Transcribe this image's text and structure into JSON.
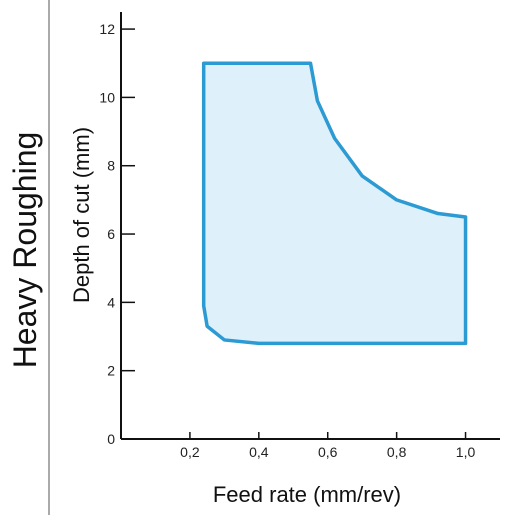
{
  "side_label": "Heavy Roughing",
  "colors": {
    "region_fill": "#def0fa",
    "region_stroke": "#2c9ad3",
    "axis": "#111111",
    "divider": "#555555"
  },
  "chart_data": {
    "type": "area",
    "title": "",
    "xlabel": "Feed rate (mm/rev)",
    "ylabel": "Depth of cut (mm)",
    "xlim": [
      0,
      1.1
    ],
    "ylim": [
      0,
      12.5
    ],
    "x_ticks": [
      0.2,
      0.4,
      0.6,
      0.8,
      1.0
    ],
    "x_tick_labels": [
      "0,2",
      "0,4",
      "0,6",
      "0,8",
      "1,0"
    ],
    "y_ticks": [
      0,
      2,
      4,
      6,
      8,
      10,
      12
    ],
    "y_tick_labels": [
      "0",
      "2",
      "4",
      "6",
      "8",
      "10",
      "12"
    ],
    "grid": false,
    "region": {
      "name": "",
      "boundary": [
        {
          "x": 0.24,
          "y": 11.0
        },
        {
          "x": 0.55,
          "y": 11.0
        },
        {
          "x": 0.57,
          "y": 9.9
        },
        {
          "x": 0.62,
          "y": 8.8
        },
        {
          "x": 0.7,
          "y": 7.7
        },
        {
          "x": 0.8,
          "y": 7.0
        },
        {
          "x": 0.92,
          "y": 6.6
        },
        {
          "x": 1.0,
          "y": 6.5
        },
        {
          "x": 1.0,
          "y": 2.8
        },
        {
          "x": 0.4,
          "y": 2.8
        },
        {
          "x": 0.3,
          "y": 2.9
        },
        {
          "x": 0.25,
          "y": 3.3
        },
        {
          "x": 0.24,
          "y": 3.9
        }
      ]
    }
  }
}
